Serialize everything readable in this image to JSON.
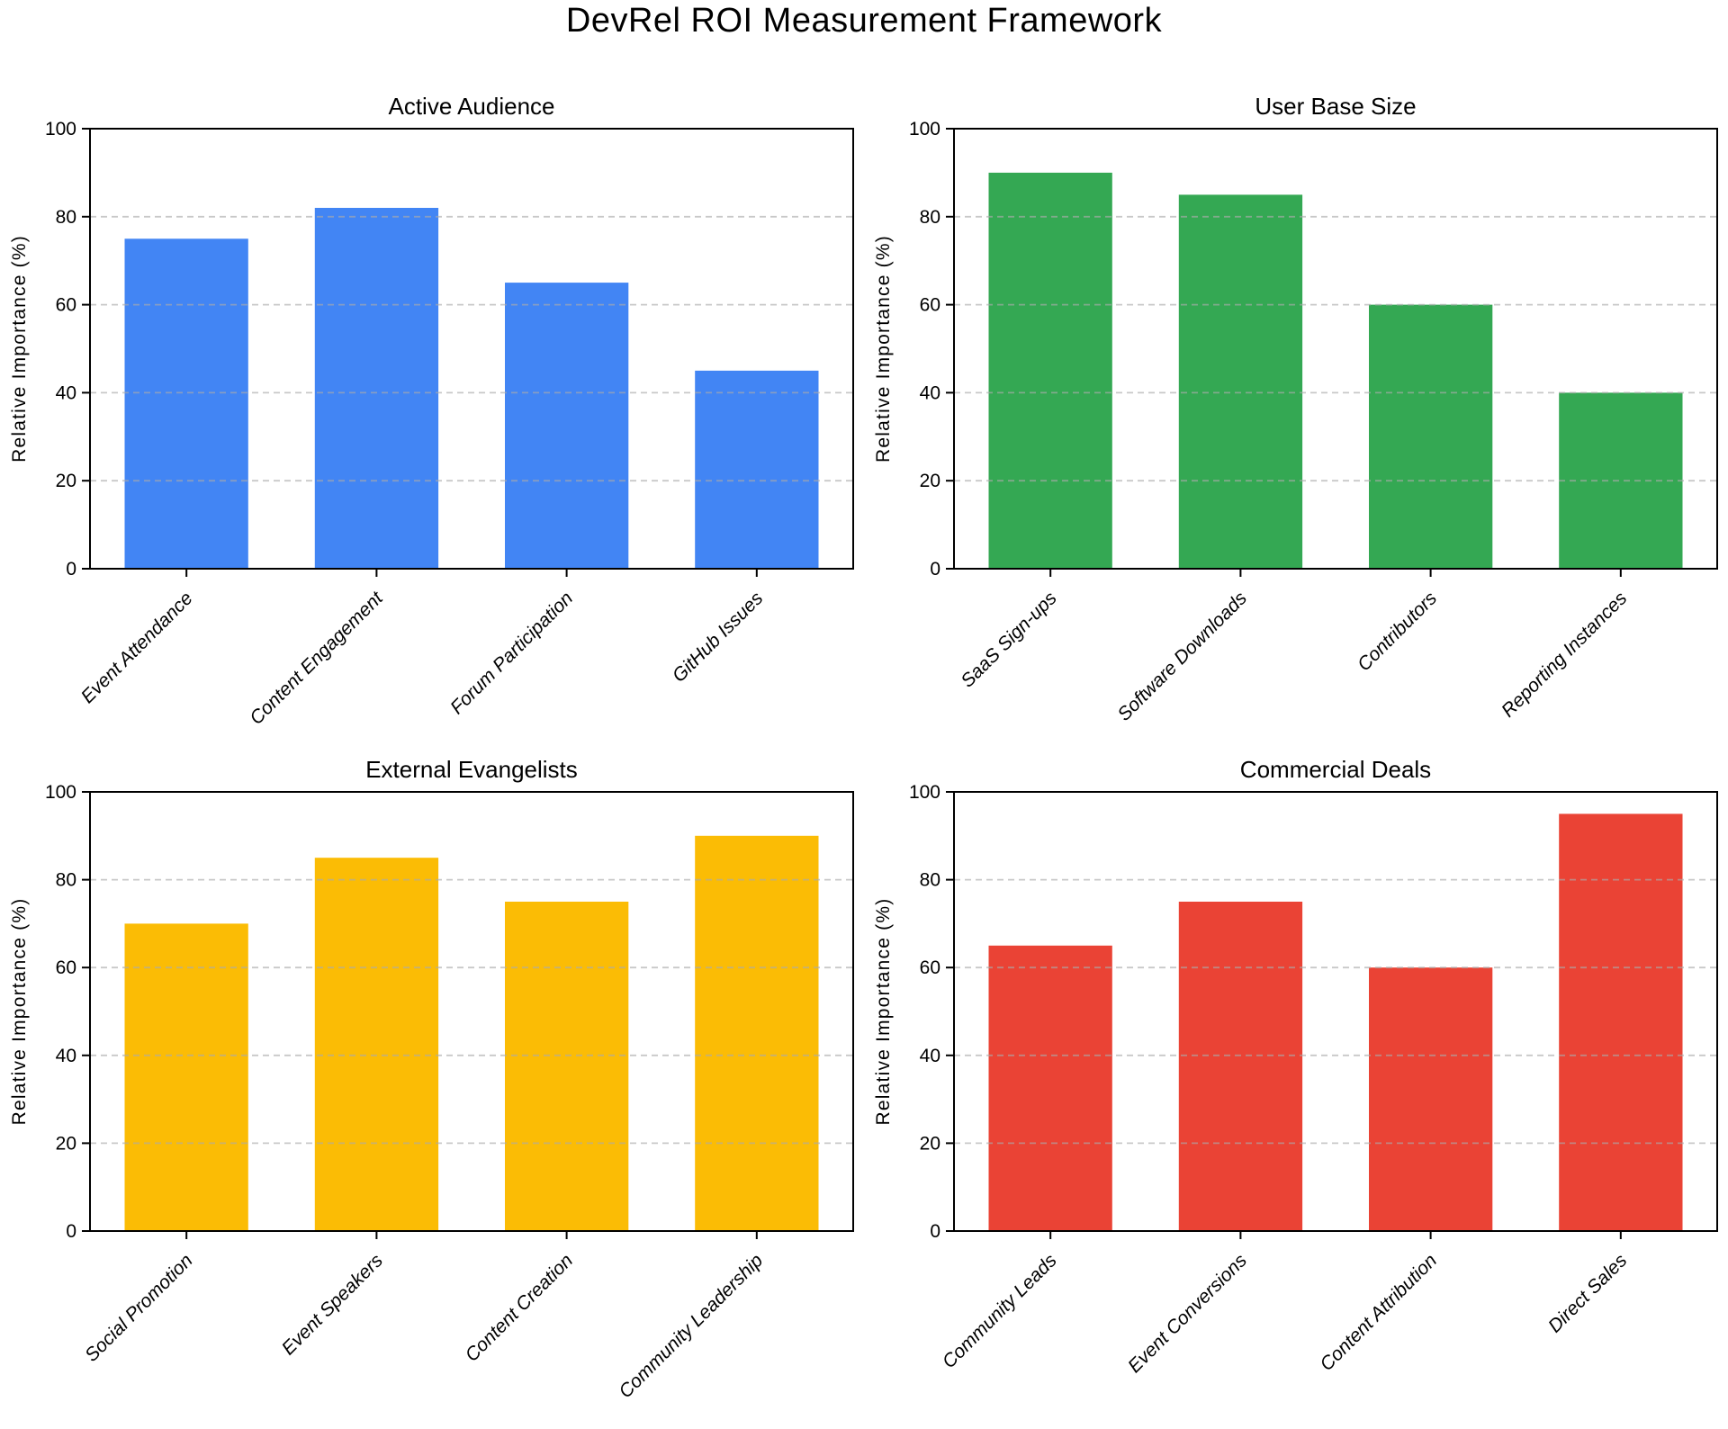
{
  "figure_title": "DevRel ROI Measurement Framework",
  "axes_style": {
    "background": "#ffffff",
    "spine_color": "#000000",
    "tick_color": "#000000",
    "grid_color": "#aaaaaa",
    "grid_style": "dashed",
    "grid_axis": "y"
  },
  "chart_data": [
    {
      "type": "bar",
      "title": "Active Audience",
      "categories": [
        "Event Attendance",
        "Content Engagement",
        "Forum Participation",
        "GitHub Issues"
      ],
      "values": [
        75,
        82,
        65,
        45
      ],
      "bar_color": "#4285F4",
      "xlabel": "",
      "ylabel": "Relative Importance (%)",
      "ylim": [
        0,
        100
      ],
      "yticks": [
        0,
        20,
        40,
        60,
        80,
        100
      ],
      "grid": "horizontal-dashed",
      "legend": "none",
      "xtick_style": "italic, rotated 45"
    },
    {
      "type": "bar",
      "title": "User Base Size",
      "categories": [
        "SaaS Sign-ups",
        "Software Downloads",
        "Contributors",
        "Reporting Instances"
      ],
      "values": [
        90,
        85,
        60,
        40
      ],
      "bar_color": "#34A853",
      "xlabel": "",
      "ylabel": "Relative Importance (%)",
      "ylim": [
        0,
        100
      ],
      "yticks": [
        0,
        20,
        40,
        60,
        80,
        100
      ],
      "grid": "horizontal-dashed",
      "legend": "none",
      "xtick_style": "italic, rotated 45"
    },
    {
      "type": "bar",
      "title": "External Evangelists",
      "categories": [
        "Social Promotion",
        "Event Speakers",
        "Content Creation",
        "Community Leadership"
      ],
      "values": [
        70,
        85,
        75,
        90
      ],
      "bar_color": "#FBBC05",
      "xlabel": "",
      "ylabel": "Relative Importance (%)",
      "ylim": [
        0,
        100
      ],
      "yticks": [
        0,
        20,
        40,
        60,
        80,
        100
      ],
      "grid": "horizontal-dashed",
      "legend": "none",
      "xtick_style": "italic, rotated 45"
    },
    {
      "type": "bar",
      "title": "Commercial Deals",
      "categories": [
        "Community Leads",
        "Event Conversions",
        "Content Attribution",
        "Direct Sales"
      ],
      "values": [
        65,
        75,
        60,
        95
      ],
      "bar_color": "#EA4335",
      "xlabel": "",
      "ylabel": "Relative Importance (%)",
      "ylim": [
        0,
        100
      ],
      "yticks": [
        0,
        20,
        40,
        60,
        80,
        100
      ],
      "grid": "horizontal-dashed",
      "legend": "none",
      "xtick_style": "italic, rotated 45"
    }
  ]
}
